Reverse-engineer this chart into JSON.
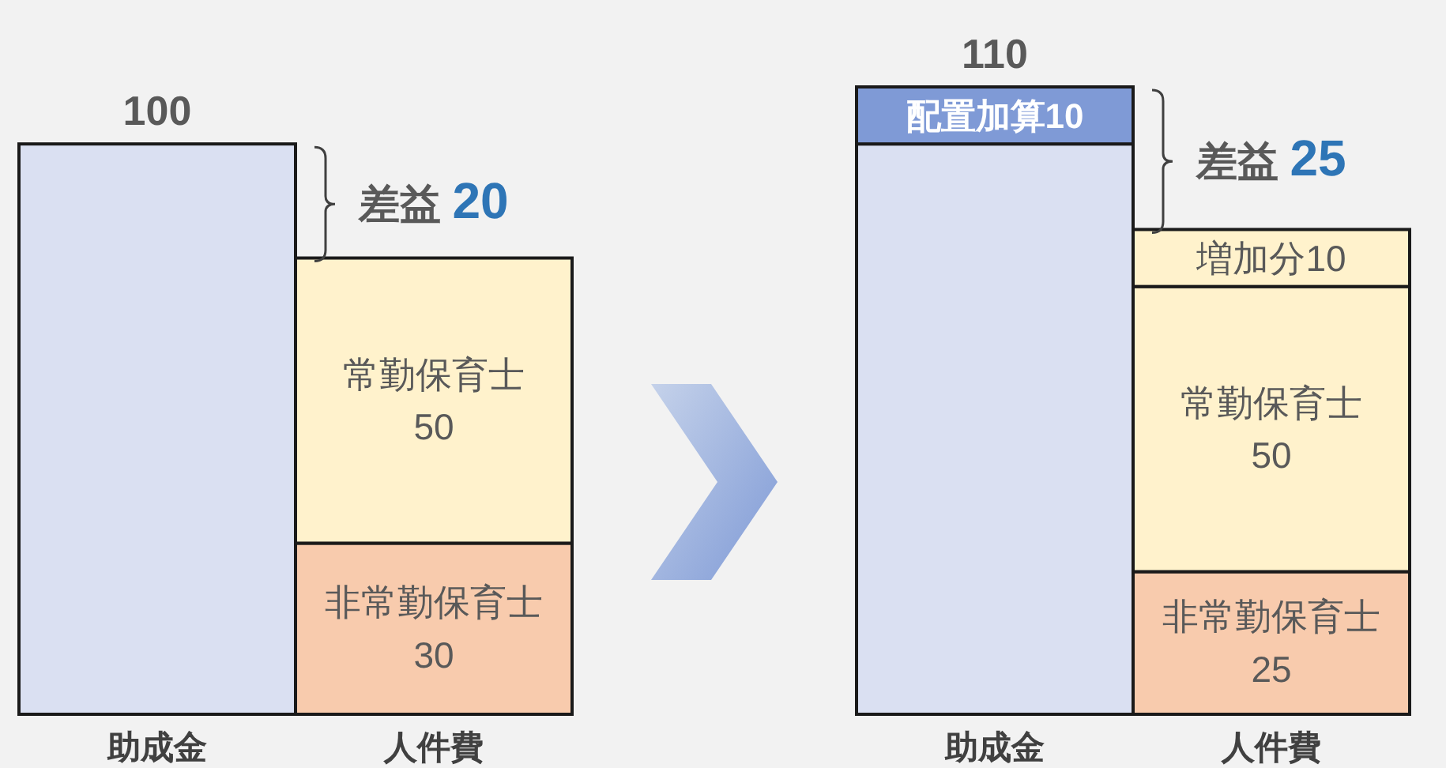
{
  "chart_data": {
    "type": "bar",
    "stacked": true,
    "categories": [
      "助成金",
      "人件費",
      "助成金",
      "人件費"
    ],
    "series": [
      {
        "colors": [
          "#dae0f2",
          "#f8cbad",
          "#dae0f2",
          "#f8cbad"
        ],
        "values": [
          100,
          30,
          100,
          25
        ],
        "value_labels": [
          null,
          "非常勤保育士\n30",
          null,
          "非常勤保育士\n25"
        ]
      },
      {
        "colors": [
          null,
          "#fff2cc",
          "#7f9ad6",
          "#fff2cc"
        ],
        "values": [
          null,
          50,
          10,
          50
        ],
        "value_labels": [
          null,
          "常勤保育士\n50",
          "配置加算10",
          "常勤保育士\n50"
        ]
      },
      {
        "colors": [
          null,
          null,
          null,
          "#fff2cc"
        ],
        "values": [
          null,
          null,
          null,
          10
        ],
        "value_labels": [
          null,
          null,
          null,
          "増加分10"
        ]
      }
    ],
    "totals": [
      "100",
      null,
      "110",
      null
    ],
    "annotations": [
      "差益 20",
      "差益 25"
    ]
  }
}
